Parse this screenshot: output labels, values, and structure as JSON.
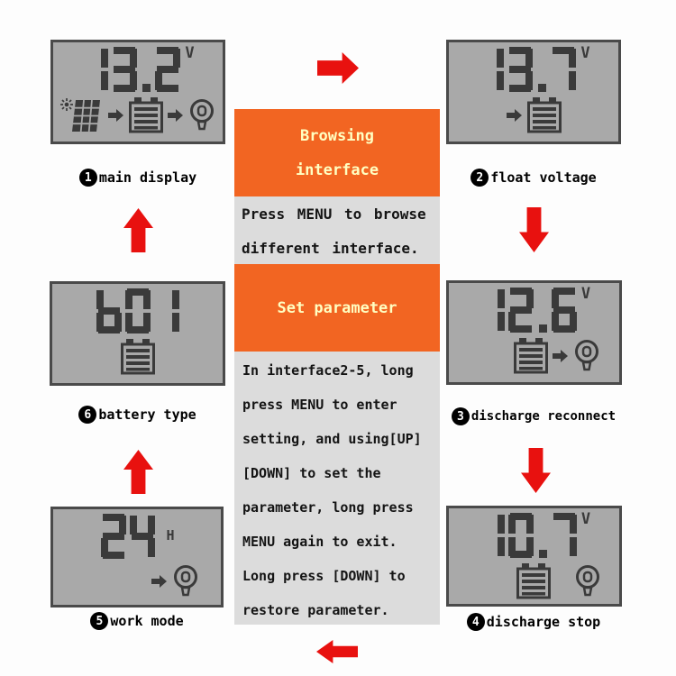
{
  "colors": {
    "orange": "#f26522",
    "title_text": "#ffffc2",
    "body_bg": "#dcdcdc",
    "body_text": "#141414",
    "panel_bg": "#a9a9a9",
    "panel_border": "#4a4a4a",
    "digit": "#3a3a3a",
    "arrow_red": "#e8110f"
  },
  "displays": {
    "main_display": {
      "step": "1",
      "label": "main display",
      "value": "13.2",
      "unit": "V",
      "icons": [
        "solar-panel",
        "arrow",
        "battery",
        "arrow",
        "bulb"
      ]
    },
    "float_voltage": {
      "step": "2",
      "label": "float voltage",
      "value": "13.7",
      "unit": "V",
      "icons": [
        "arrow",
        "battery"
      ]
    },
    "discharge_reconnect": {
      "step": "3",
      "label": "discharge reconnect",
      "value": "12.6",
      "unit": "V",
      "icons": [
        "battery",
        "arrow",
        "bulb"
      ]
    },
    "discharge_stop": {
      "step": "4",
      "label": "discharge stop",
      "value": "10.7",
      "unit": "V",
      "icons": [
        "battery",
        "bulb"
      ]
    },
    "work_mode": {
      "step": "5",
      "label": "work mode",
      "value": "24",
      "unit": "H",
      "icons": [
        "arrow",
        "bulb"
      ]
    },
    "battery_type": {
      "step": "6",
      "label": "battery type",
      "value": "b01",
      "unit": "",
      "icons": [
        "battery"
      ]
    }
  },
  "center": {
    "browsing_title_lines": [
      "Browsing",
      "interface"
    ],
    "browsing_body_lines": [
      "Press MENU to browse",
      "different interface."
    ],
    "set_title_lines": [
      "Set parameter"
    ],
    "set_body_lines": [
      "In interface2-5, long",
      "press MENU to enter",
      "setting, and using[UP]",
      "[DOWN] to set the",
      "parameter, long press",
      "MENU again to exit.",
      "Long press [DOWN] to",
      "restore parameter."
    ]
  }
}
